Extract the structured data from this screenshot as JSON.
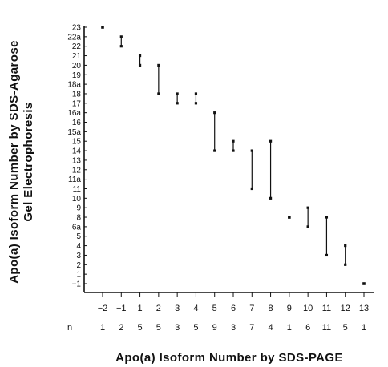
{
  "chart_data": {
    "type": "scatter",
    "title": "",
    "xlabel": "Apo(a)  Isoform  Number  by  SDS-PAGE",
    "ylabel_line1": "Apo(a)  Isoform  Number  by  SDS-Agarose",
    "ylabel_line2": "Gel  Electrophoresis",
    "n_label": "n",
    "x_categories": [
      "−2",
      "−1",
      "1",
      "2",
      "3",
      "4",
      "5",
      "6",
      "7",
      "8",
      "9",
      "10",
      "11",
      "12",
      "13"
    ],
    "n_values": [
      "1",
      "2",
      "5",
      "5",
      "3",
      "5",
      "9",
      "3",
      "7",
      "4",
      "1",
      "6",
      "11",
      "5",
      "1"
    ],
    "y_categories": [
      "−1",
      "1",
      "2",
      "3",
      "4",
      "5",
      "6a",
      "8",
      "9",
      "10",
      "11",
      "11a",
      "12",
      "13",
      "14",
      "15",
      "15a",
      "16",
      "16a",
      "17",
      "18",
      "18a",
      "19",
      "20",
      "21",
      "22",
      "22a",
      "23"
    ],
    "ranges": [
      {
        "x": "−2",
        "y_low": "23",
        "y_high": "23"
      },
      {
        "x": "−1",
        "y_low": "22",
        "y_high": "22a"
      },
      {
        "x": "1",
        "y_low": "20",
        "y_high": "21"
      },
      {
        "x": "2",
        "y_low": "18",
        "y_high": "20"
      },
      {
        "x": "3",
        "y_low": "17",
        "y_high": "18"
      },
      {
        "x": "4",
        "y_low": "17",
        "y_high": "18"
      },
      {
        "x": "5",
        "y_low": "14",
        "y_high": "16a"
      },
      {
        "x": "6",
        "y_low": "14",
        "y_high": "15"
      },
      {
        "x": "7",
        "y_low": "11",
        "y_high": "14"
      },
      {
        "x": "8",
        "y_low": "10",
        "y_high": "15"
      },
      {
        "x": "9",
        "y_low": "8",
        "y_high": "8"
      },
      {
        "x": "10",
        "y_low": "6a",
        "y_high": "9"
      },
      {
        "x": "11",
        "y_low": "3",
        "y_high": "8"
      },
      {
        "x": "12",
        "y_low": "2",
        "y_high": "4"
      },
      {
        "x": "13",
        "y_low": "−1",
        "y_high": "−1"
      }
    ],
    "grid": false,
    "legend": "none"
  }
}
